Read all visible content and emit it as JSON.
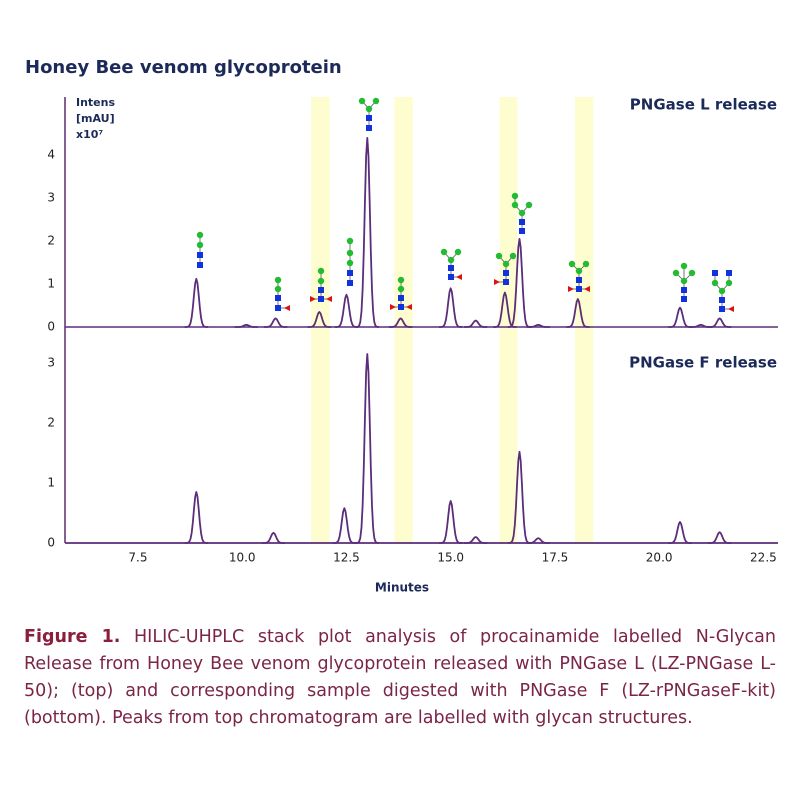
{
  "chart_data": [
    {
      "type": "line",
      "title": "Honey Bee venom glycoprotein",
      "subtitle": "PNGase L release",
      "y_label": [
        "Intens",
        "[mAU]",
        "x10⁷"
      ],
      "xlim": [
        5.75,
        22.85
      ],
      "ylim": [
        0,
        5.35
      ],
      "yticks": [
        0,
        1,
        2,
        3,
        4
      ],
      "highlight_ranges": [
        [
          11.65,
          12.1
        ],
        [
          13.65,
          14.09
        ],
        [
          16.17,
          16.6
        ],
        [
          17.98,
          18.42
        ]
      ],
      "color": "#5b2d7a",
      "x": [
        8.9,
        10.1,
        10.8,
        11.85,
        12.5,
        13.0,
        13.8,
        15.0,
        15.6,
        16.3,
        16.65,
        17.1,
        18.05,
        20.5,
        21.0,
        21.45
      ],
      "values": [
        1.12,
        0.05,
        0.2,
        0.35,
        0.75,
        4.4,
        0.2,
        0.9,
        0.15,
        0.8,
        2.05,
        0.05,
        0.65,
        0.45,
        0.05,
        0.2
      ]
    },
    {
      "type": "line",
      "subtitle": "PNGase F release",
      "x_label": "Minutes",
      "xlim": [
        5.75,
        22.85
      ],
      "ylim": [
        0,
        3.55
      ],
      "yticks": [
        0,
        1,
        2,
        3
      ],
      "xticks": [
        7.5,
        {
          "value": 10,
          "label": "10.0"
        },
        12.5,
        {
          "value": 15,
          "label": "15.0"
        },
        17.5,
        {
          "value": 20,
          "label": "20.0"
        },
        22.5
      ],
      "color": "#5b2d7a",
      "x": [
        8.9,
        10.75,
        12.45,
        13.0,
        15.0,
        15.6,
        16.65,
        17.1,
        20.5,
        21.45
      ],
      "values": [
        0.85,
        0.17,
        0.58,
        3.15,
        0.7,
        0.1,
        1.52,
        0.08,
        0.35,
        0.18
      ]
    }
  ],
  "caption": {
    "label": "Figure 1.",
    "text": "HILIC-UHPLC stack plot analysis of procainamide labelled N-Glycan Release from Honey Bee venom glycoprotein released with PNGase L (LZ-PNGase L-50); (top) and corresponding sample digested with PNGase F (LZ-rPNGaseF-kit) (bottom). Peaks from top chromatogram are labelled with glycan structures."
  }
}
